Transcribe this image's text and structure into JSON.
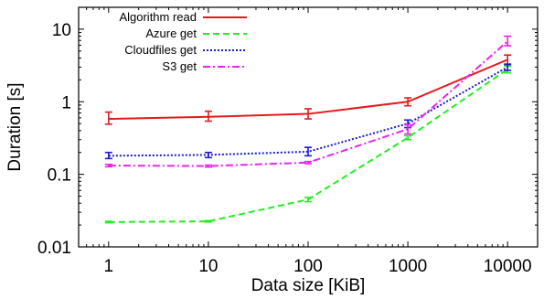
{
  "chart_data": {
    "type": "line",
    "xlabel": "Data size [KiB]",
    "ylabel": "Duration [s]",
    "x_scale": "log",
    "y_scale": "log",
    "xlim": [
      0.5,
      20000
    ],
    "ylim": [
      0.01,
      20
    ],
    "x": [
      1,
      10,
      100,
      1000,
      10000
    ],
    "x_ticks": [
      1,
      10,
      100,
      1000,
      10000
    ],
    "x_tick_labels": [
      "1",
      "10",
      "100",
      "1000",
      "10000"
    ],
    "y_ticks": [
      0.01,
      0.1,
      1,
      10
    ],
    "y_tick_labels": [
      "0.01",
      "0.1",
      "1",
      "10"
    ],
    "grid": false,
    "legend_position": "top-left",
    "series": [
      {
        "name": "Algorithm read",
        "color": "#e41a1c",
        "dash": "solid",
        "values": [
          0.58,
          0.62,
          0.68,
          1.0,
          3.8
        ],
        "err_low": [
          0.49,
          0.54,
          0.58,
          0.88,
          3.2
        ],
        "err_high": [
          0.72,
          0.74,
          0.8,
          1.13,
          4.4
        ]
      },
      {
        "name": "Azure get",
        "color": "#22ee22",
        "dash": "dashed",
        "values": [
          0.022,
          0.0225,
          0.045,
          0.32,
          2.8
        ],
        "err_low": [
          0.0215,
          0.022,
          0.042,
          0.3,
          2.5
        ],
        "err_high": [
          0.0225,
          0.023,
          0.048,
          0.34,
          3.1
        ]
      },
      {
        "name": "Cloudfiles get",
        "color": "#1a1acc",
        "dash": "dotted",
        "values": [
          0.18,
          0.185,
          0.205,
          0.5,
          3.0
        ],
        "err_low": [
          0.165,
          0.17,
          0.18,
          0.44,
          2.7
        ],
        "err_high": [
          0.2,
          0.2,
          0.235,
          0.56,
          3.3
        ]
      },
      {
        "name": "S3 get",
        "color": "#ee22ee",
        "dash": "dashdot",
        "values": [
          0.132,
          0.13,
          0.145,
          0.42,
          6.8
        ],
        "err_low": [
          0.127,
          0.126,
          0.14,
          0.36,
          5.9
        ],
        "err_high": [
          0.137,
          0.134,
          0.15,
          0.48,
          8.0
        ]
      }
    ]
  }
}
